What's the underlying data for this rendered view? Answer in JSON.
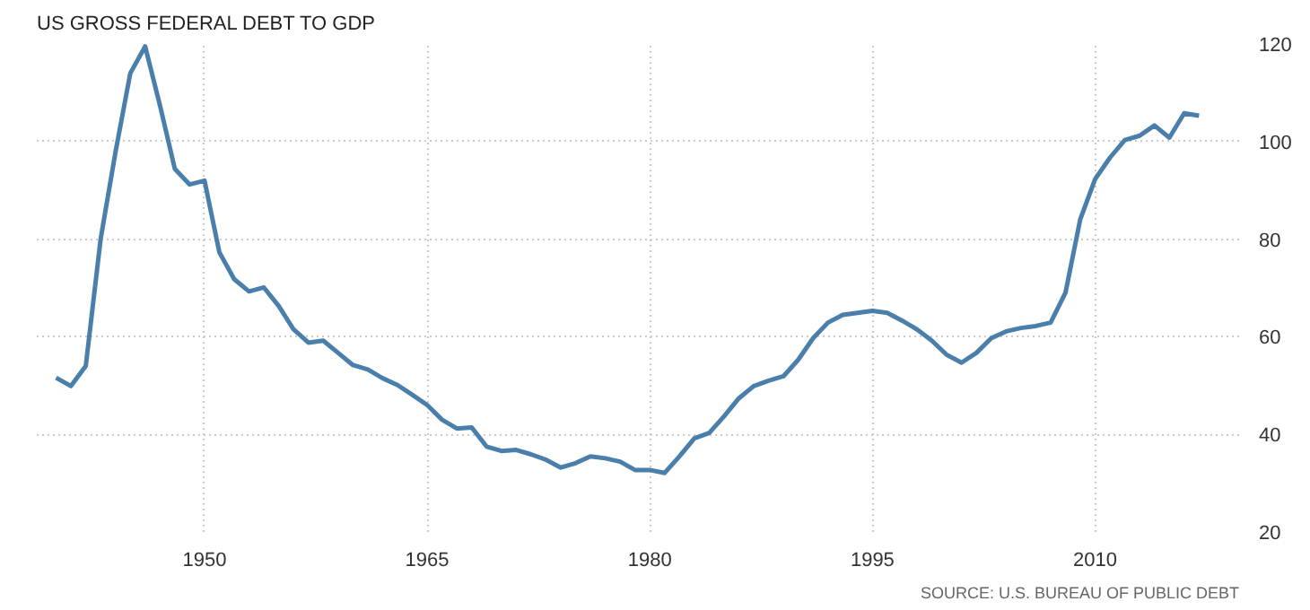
{
  "chart_data": {
    "type": "line",
    "title": "US GROSS FEDERAL DEBT TO GDP",
    "annotations": [
      "SOURCE: U.S. BUREAU OF PUBLIC DEBT"
    ],
    "x": [
      1940,
      1941,
      1942,
      1943,
      1944,
      1945,
      1946,
      1947,
      1948,
      1949,
      1950,
      1951,
      1952,
      1953,
      1954,
      1955,
      1956,
      1957,
      1958,
      1959,
      1960,
      1961,
      1962,
      1963,
      1964,
      1965,
      1966,
      1967,
      1968,
      1969,
      1970,
      1971,
      1972,
      1973,
      1974,
      1975,
      1976,
      1977,
      1978,
      1979,
      1980,
      1981,
      1982,
      1983,
      1984,
      1985,
      1986,
      1987,
      1988,
      1989,
      1990,
      1991,
      1992,
      1993,
      1994,
      1995,
      1996,
      1997,
      1998,
      1999,
      2000,
      2001,
      2002,
      2003,
      2004,
      2005,
      2006,
      2007,
      2008,
      2009,
      2010,
      2011,
      2012,
      2013,
      2014,
      2015,
      2016,
      2017
    ],
    "series": [
      {
        "color": "#4a7fab",
        "values": [
          51.6,
          49.9,
          54,
          80,
          97.8,
          114,
          119.5,
          107.4,
          94.4,
          91.2,
          92,
          77.3,
          71.8,
          69.3,
          70.1,
          66.3,
          61.5,
          58.8,
          59.2,
          56.7,
          54.2,
          53.3,
          51.5,
          50.1,
          48.1,
          46,
          43,
          41.2,
          41.4,
          37.5,
          36.6,
          36.8,
          35.9,
          34.8,
          33.2,
          34.1,
          35.5,
          35.1,
          34.4,
          32.7,
          32.7,
          32.1,
          35.5,
          39.2,
          40.3,
          43.7,
          47.4,
          49.9,
          51,
          51.9,
          55.3,
          59.7,
          62.9,
          64.5,
          64.9,
          65.3,
          64.9,
          63.3,
          61.5,
          59.2,
          56.3,
          54.7,
          56.7,
          59.7,
          61.1,
          61.8,
          62.2,
          62.9,
          69,
          84.1,
          92.3,
          96.7,
          100.3,
          101.2,
          103.3,
          100.8,
          105.8,
          105.3
        ]
      }
    ],
    "xlim": [
      1938.7,
      2019.7
    ],
    "ylim": [
      20,
      120
    ],
    "xticks": [
      1950,
      1965,
      1980,
      1995,
      2010
    ],
    "yticks": [
      20,
      40,
      60,
      80,
      100,
      120
    ],
    "grid": true,
    "line_style": "solid"
  }
}
